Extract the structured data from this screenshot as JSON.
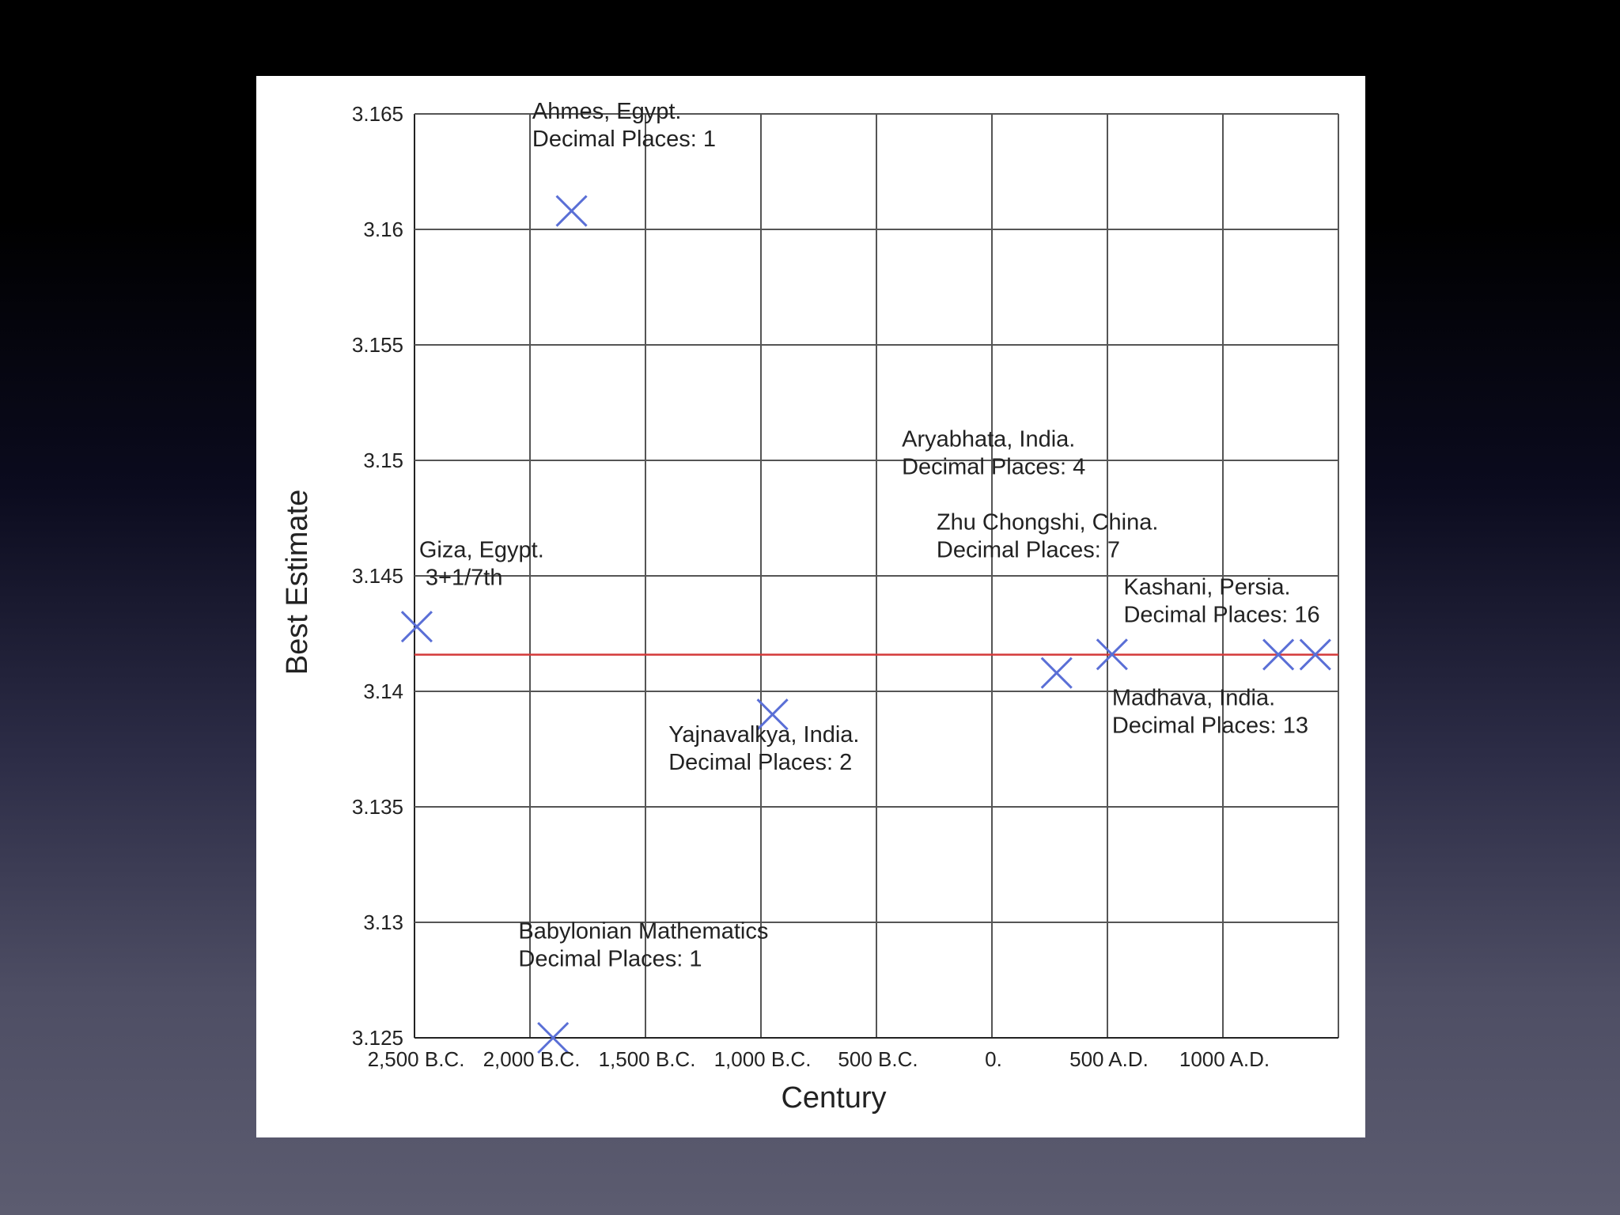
{
  "colors": {
    "marker": "#5a6fd6",
    "reference_line": "#d43a3a",
    "grid": "#555555"
  },
  "chart_data": {
    "type": "scatter",
    "title": "",
    "xlabel": "Century",
    "ylabel": "Best Estimate",
    "xlim": [
      -2500,
      1500
    ],
    "ylim": [
      3.125,
      3.165
    ],
    "grid": true,
    "x_ticks": [
      {
        "value": -2500,
        "label": "2,500 B.C."
      },
      {
        "value": -2000,
        "label": "2,000 B.C."
      },
      {
        "value": -1500,
        "label": "1,500 B.C."
      },
      {
        "value": -1000,
        "label": "1,000 B.C."
      },
      {
        "value": -500,
        "label": "500 B.C."
      },
      {
        "value": 0,
        "label": "0."
      },
      {
        "value": 500,
        "label": "500 A.D."
      },
      {
        "value": 1000,
        "label": "1000 A.D."
      }
    ],
    "y_ticks": [
      {
        "value": 3.125,
        "label": "3.125"
      },
      {
        "value": 3.13,
        "label": "3.13"
      },
      {
        "value": 3.135,
        "label": "3.135"
      },
      {
        "value": 3.14,
        "label": "3.14"
      },
      {
        "value": 3.145,
        "label": "3.145"
      },
      {
        "value": 3.15,
        "label": "3.15"
      },
      {
        "value": 3.155,
        "label": "3.155"
      },
      {
        "value": 3.16,
        "label": "3.16"
      },
      {
        "value": 3.165,
        "label": "3.165"
      }
    ],
    "reference_line": {
      "y": 3.14159
    },
    "points": [
      {
        "x": -2490,
        "y": 3.1428
      },
      {
        "x": -1820,
        "y": 3.1608
      },
      {
        "x": -1900,
        "y": 3.125
      },
      {
        "x": -950,
        "y": 3.139
      },
      {
        "x": 280,
        "y": 3.1408
      },
      {
        "x": 520,
        "y": 3.1416
      },
      {
        "x": 1240,
        "y": 3.14159
      },
      {
        "x": 1400,
        "y": 3.14159
      }
    ],
    "annotations": [
      {
        "lines": [
          "Ahmes, Egypt.",
          "Decimal Places: 1"
        ],
        "x": -1990,
        "y": 3.1648
      },
      {
        "lines": [
          "Giza, Egypt.",
          " 3+1/7th"
        ],
        "x": -2480,
        "y": 3.1458
      },
      {
        "lines": [
          "Babylonian Mathematics",
          "Decimal Places: 1"
        ],
        "x": -2050,
        "y": 3.1293
      },
      {
        "lines": [
          "Yajnavalkya, India.",
          "Decimal Places: 2"
        ],
        "x": -1400,
        "y": 3.1378
      },
      {
        "lines": [
          "Aryabhata, India.",
          "Decimal Places: 4"
        ],
        "x": -390,
        "y": 3.1506
      },
      {
        "lines": [
          "Zhu Chongshi, China.",
          "Decimal Places: 7"
        ],
        "x": -240,
        "y": 3.147
      },
      {
        "lines": [
          "Kashani, Persia.",
          "Decimal Places: 16"
        ],
        "x": 570,
        "y": 3.1442
      },
      {
        "lines": [
          "Madhava, India.",
          "Decimal Places: 13"
        ],
        "x": 520,
        "y": 3.1394
      }
    ]
  }
}
